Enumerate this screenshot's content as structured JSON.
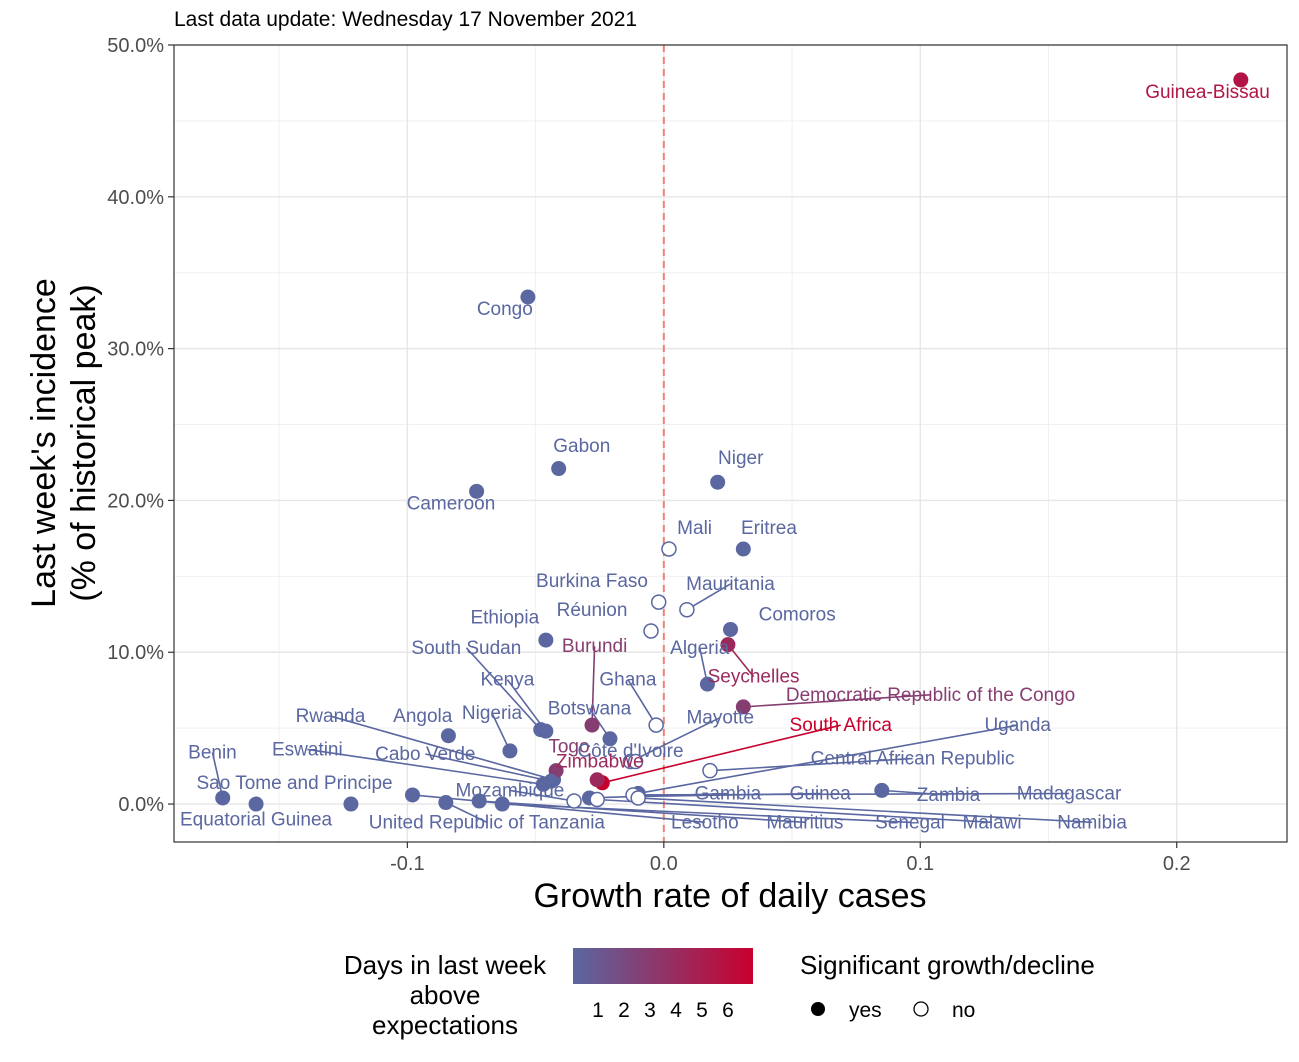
{
  "subtitle": "Last data update: Wednesday 17 November 2021",
  "chart_data": {
    "type": "scatter",
    "xlabel": "Growth rate of daily cases",
    "ylabel_lines": [
      "Last week's incidence",
      "(% of historical peak)"
    ],
    "xlim": [
      -0.191,
      0.243
    ],
    "ylim": [
      -0.025,
      0.5
    ],
    "x_ticks": [
      {
        "value": -0.1,
        "label": "-0.1"
      },
      {
        "value": 0.0,
        "label": "0.0"
      },
      {
        "value": 0.1,
        "label": "0.1"
      },
      {
        "value": 0.2,
        "label": "0.2"
      }
    ],
    "y_ticks": [
      {
        "value": 0.0,
        "label": "0.0%"
      },
      {
        "value": 0.1,
        "label": "10.0%"
      },
      {
        "value": 0.2,
        "label": "20.0%"
      },
      {
        "value": 0.3,
        "label": "30.0%"
      },
      {
        "value": 0.4,
        "label": "40.0%"
      },
      {
        "value": 0.5,
        "label": "50.0%"
      }
    ],
    "reference_line_x": 0,
    "reference_line_color": "#f08070",
    "grid": true,
    "color_scale": {
      "low": "#5a67a0",
      "high": "#c8002e",
      "min_days": 1,
      "max_days": 6
    },
    "points": [
      {
        "name": "Guinea-Bissau",
        "x": 0.225,
        "y": 0.477,
        "days": 5,
        "sig": true,
        "lx": 0.212,
        "ly": 0.465,
        "anchor": "middle"
      },
      {
        "name": "Congo",
        "x": -0.053,
        "y": 0.334,
        "days": 1,
        "sig": true,
        "lx": -0.062,
        "ly": 0.322,
        "anchor": "middle"
      },
      {
        "name": "Gabon",
        "x": -0.041,
        "y": 0.221,
        "days": 1,
        "sig": true,
        "lx": -0.032,
        "ly": 0.232,
        "anchor": "middle"
      },
      {
        "name": "Cameroon",
        "x": -0.073,
        "y": 0.206,
        "days": 1,
        "sig": true,
        "lx": -0.083,
        "ly": 0.194,
        "anchor": "middle"
      },
      {
        "name": "Niger",
        "x": 0.021,
        "y": 0.212,
        "days": 1,
        "sig": true,
        "lx": 0.03,
        "ly": 0.224,
        "anchor": "middle"
      },
      {
        "name": "Mali",
        "x": 0.002,
        "y": 0.168,
        "days": 1,
        "sig": false,
        "lx": 0.012,
        "ly": 0.178,
        "anchor": "middle"
      },
      {
        "name": "Eritrea",
        "x": 0.031,
        "y": 0.168,
        "days": 1,
        "sig": true,
        "lx": 0.041,
        "ly": 0.178,
        "anchor": "middle"
      },
      {
        "name": "Burkina Faso",
        "x": -0.002,
        "y": 0.133,
        "days": 1,
        "sig": false,
        "lx": -0.028,
        "ly": 0.143,
        "anchor": "middle"
      },
      {
        "name": "Mauritania",
        "x": 0.009,
        "y": 0.128,
        "days": 1,
        "sig": false,
        "lx": 0.026,
        "ly": 0.141,
        "anchor": "middle",
        "line": true
      },
      {
        "name": "Réunion",
        "x": -0.005,
        "y": 0.114,
        "days": 1,
        "sig": false,
        "lx": -0.028,
        "ly": 0.124,
        "anchor": "middle"
      },
      {
        "name": "Comoros",
        "x": 0.026,
        "y": 0.115,
        "days": 1,
        "sig": true,
        "lx": 0.052,
        "ly": 0.121,
        "anchor": "middle"
      },
      {
        "name": "Ethiopia",
        "x": -0.046,
        "y": 0.108,
        "days": 1,
        "sig": true,
        "lx": -0.062,
        "ly": 0.119,
        "anchor": "middle"
      },
      {
        "name": "Seychelles",
        "x": 0.025,
        "y": 0.105,
        "days": 4,
        "sig": true,
        "lx": 0.035,
        "ly": 0.08,
        "anchor": "middle",
        "line": true
      },
      {
        "name": "Algeria",
        "x": 0.017,
        "y": 0.079,
        "days": 1,
        "sig": true,
        "lx": 0.014,
        "ly": 0.099,
        "anchor": "middle",
        "line": true
      },
      {
        "name": "Burundi",
        "x": -0.028,
        "y": 0.052,
        "days": 3,
        "sig": true,
        "lx": -0.027,
        "ly": 0.1,
        "anchor": "middle",
        "line": true
      },
      {
        "name": "South Sudan",
        "x": -0.048,
        "y": 0.049,
        "days": 1,
        "sig": true,
        "lx": -0.077,
        "ly": 0.099,
        "anchor": "middle",
        "line": true
      },
      {
        "name": "Democratic Republic of the Congo",
        "x": 0.031,
        "y": 0.064,
        "days": 3,
        "sig": true,
        "lx": 0.104,
        "ly": 0.068,
        "anchor": "middle",
        "line": true
      },
      {
        "name": "Ghana",
        "x": -0.003,
        "y": 0.052,
        "days": 1,
        "sig": false,
        "lx": -0.014,
        "ly": 0.078,
        "anchor": "middle",
        "line": true
      },
      {
        "name": "Kenya",
        "x": -0.046,
        "y": 0.048,
        "days": 1,
        "sig": true,
        "lx": -0.061,
        "ly": 0.078,
        "anchor": "middle",
        "line": true
      },
      {
        "name": "Botswana",
        "x": -0.021,
        "y": 0.043,
        "days": 1,
        "sig": true,
        "lx": -0.029,
        "ly": 0.059,
        "anchor": "middle",
        "line": true
      },
      {
        "name": "Mayotte",
        "x": -0.013,
        "y": 0.028,
        "days": 1,
        "sig": false,
        "lx": 0.022,
        "ly": 0.053,
        "anchor": "middle",
        "line": true
      },
      {
        "name": "South Africa",
        "x": -0.024,
        "y": 0.014,
        "days": 6,
        "sig": true,
        "lx": 0.069,
        "ly": 0.048,
        "anchor": "middle",
        "line": true
      },
      {
        "name": "Uganda",
        "x": -0.01,
        "y": 0.007,
        "days": 1,
        "sig": true,
        "lx": 0.138,
        "ly": 0.048,
        "anchor": "middle",
        "line": true
      },
      {
        "name": "Angola",
        "x": -0.084,
        "y": 0.045,
        "days": 1,
        "sig": true,
        "lx": -0.094,
        "ly": 0.054,
        "anchor": "middle"
      },
      {
        "name": "Rwanda",
        "x": -0.043,
        "y": 0.016,
        "days": 1,
        "sig": true,
        "lx": -0.13,
        "ly": 0.054,
        "anchor": "middle",
        "line": true
      },
      {
        "name": "Nigeria",
        "x": -0.06,
        "y": 0.035,
        "days": 1,
        "sig": true,
        "lx": -0.067,
        "ly": 0.056,
        "anchor": "middle",
        "line": true
      },
      {
        "name": "Togo",
        "x": -0.042,
        "y": 0.022,
        "days": 3,
        "sig": true,
        "lx": -0.037,
        "ly": 0.034,
        "anchor": "middle"
      },
      {
        "name": "Côte d'Ivoire",
        "x": -0.011,
        "y": 0.028,
        "days": 1,
        "sig": false,
        "lx": -0.013,
        "ly": 0.031,
        "anchor": "middle"
      },
      {
        "name": "Zimbabwe",
        "x": -0.026,
        "y": 0.016,
        "days": 4,
        "sig": true,
        "lx": -0.025,
        "ly": 0.024,
        "anchor": "middle"
      },
      {
        "name": "Cabo Verde",
        "x": -0.044,
        "y": 0.015,
        "days": 1,
        "sig": true,
        "lx": -0.093,
        "ly": 0.029,
        "anchor": "middle",
        "line": true
      },
      {
        "name": "Eswatini",
        "x": -0.047,
        "y": 0.013,
        "days": 1,
        "sig": true,
        "lx": -0.139,
        "ly": 0.032,
        "anchor": "middle",
        "line": true
      },
      {
        "name": "Central African Republic",
        "x": 0.018,
        "y": 0.022,
        "days": 1,
        "sig": false,
        "lx": 0.097,
        "ly": 0.026,
        "anchor": "middle",
        "line": true
      },
      {
        "name": "Benin",
        "x": -0.172,
        "y": 0.004,
        "days": 1,
        "sig": true,
        "lx": -0.176,
        "ly": 0.03,
        "anchor": "middle",
        "line": true
      },
      {
        "name": "Sao Tome and Principe",
        "x": -0.159,
        "y": 0.0,
        "days": 1,
        "sig": true,
        "lx": -0.144,
        "ly": 0.01,
        "anchor": "middle"
      },
      {
        "name": "Equatorial Guinea",
        "x": -0.122,
        "y": 0.0,
        "days": 1,
        "sig": true,
        "lx": -0.159,
        "ly": -0.014,
        "anchor": "middle"
      },
      {
        "name": "Mozambique",
        "x": -0.035,
        "y": 0.002,
        "days": 1,
        "sig": false,
        "lx": -0.06,
        "ly": 0.005,
        "anchor": "middle",
        "line": true
      },
      {
        "name": "United Republic of Tanzania",
        "x": -0.085,
        "y": 0.001,
        "days": 1,
        "sig": true,
        "lx": -0.069,
        "ly": -0.016,
        "anchor": "middle",
        "line": true
      },
      {
        "name": "Gambia",
        "x": -0.029,
        "y": 0.004,
        "days": 1,
        "sig": true,
        "lx": 0.025,
        "ly": 0.003,
        "anchor": "middle",
        "line": true
      },
      {
        "name": "Guinea",
        "x": -0.01,
        "y": 0.005,
        "days": 1,
        "sig": false,
        "lx": 0.061,
        "ly": 0.003,
        "anchor": "middle",
        "line": true
      },
      {
        "name": "Zambia",
        "x": 0.085,
        "y": 0.009,
        "days": 1,
        "sig": true,
        "lx": 0.111,
        "ly": 0.002,
        "anchor": "middle",
        "line": true
      },
      {
        "name": "Madagascar",
        "x": -0.012,
        "y": 0.006,
        "days": 1,
        "sig": false,
        "lx": 0.158,
        "ly": 0.003,
        "anchor": "middle",
        "line": true
      },
      {
        "name": "Lesotho",
        "x": -0.098,
        "y": 0.006,
        "days": 1,
        "sig": true,
        "lx": 0.016,
        "ly": -0.016,
        "anchor": "middle",
        "line": true
      },
      {
        "name": "Mauritius",
        "x": -0.072,
        "y": 0.002,
        "days": 1,
        "sig": true,
        "lx": 0.055,
        "ly": -0.016,
        "anchor": "middle",
        "line": true
      },
      {
        "name": "Senegal",
        "x": -0.063,
        "y": 0.0,
        "days": 1,
        "sig": true,
        "lx": 0.096,
        "ly": -0.016,
        "anchor": "middle",
        "line": true
      },
      {
        "name": "Malawi",
        "x": -0.026,
        "y": 0.003,
        "days": 1,
        "sig": false,
        "lx": 0.128,
        "ly": -0.016,
        "anchor": "middle",
        "line": true
      },
      {
        "name": "Namibia",
        "x": -0.01,
        "y": 0.004,
        "days": 1,
        "sig": false,
        "lx": 0.167,
        "ly": -0.016,
        "anchor": "middle",
        "line": true
      }
    ],
    "legend": {
      "color_title_lines": [
        "Days in last week",
        "above",
        "expectations"
      ],
      "color_labels": [
        "1",
        "2",
        "3",
        "4",
        "5",
        "6"
      ],
      "shape_title": "Significant growth/decline",
      "shape_labels": [
        "yes",
        "no"
      ]
    }
  }
}
